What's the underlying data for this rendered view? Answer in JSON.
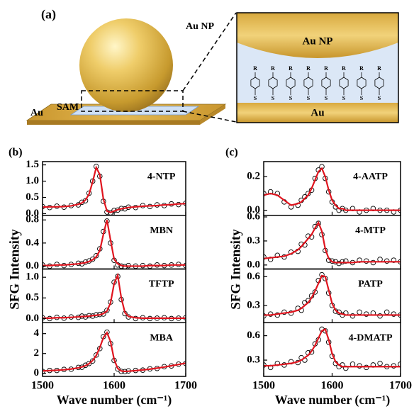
{
  "panel_a": {
    "label": "(a)",
    "np_label": "Au NP",
    "sam_label": "SAM",
    "substrate_label": "Au",
    "inset_np_label": "Au NP",
    "inset_substrate_label": "Au",
    "molecule_top_label": "R",
    "molecule_bottom_label": "S"
  },
  "panel_b": {
    "label": "(b)",
    "ylabel": "SFG Intensity",
    "xlabel": "Wave number (cm⁻¹)"
  },
  "panel_c": {
    "label": "(c)",
    "ylabel": "SFG Intensity",
    "xlabel": "Wave number (cm⁻¹)"
  },
  "chart_data": [
    {
      "type": "line",
      "annotation": "4-NTP",
      "x": [
        1500,
        1510,
        1520,
        1530,
        1540,
        1550,
        1555,
        1560,
        1565,
        1570,
        1575,
        1580,
        1585,
        1590,
        1595,
        1600,
        1605,
        1610,
        1615,
        1620,
        1630,
        1640,
        1650,
        1660,
        1670,
        1680,
        1690,
        1700
      ],
      "series": [
        {
          "color": "#000000",
          "marker": "circle",
          "values": [
            0.22,
            0.19,
            0.23,
            0.2,
            0.25,
            0.27,
            0.35,
            0.4,
            0.63,
            1.0,
            1.45,
            1.15,
            0.38,
            0.05,
            0.03,
            0.1,
            0.11,
            0.16,
            0.15,
            0.2,
            0.19,
            0.25,
            0.22,
            0.27,
            0.25,
            0.3,
            0.28,
            0.32
          ]
        },
        {
          "color": "#e0141e",
          "marker": "line",
          "values": [
            0.2,
            0.21,
            0.21,
            0.22,
            0.24,
            0.29,
            0.33,
            0.42,
            0.6,
            0.98,
            1.42,
            1.2,
            0.45,
            0.08,
            0.04,
            0.08,
            0.12,
            0.15,
            0.17,
            0.19,
            0.21,
            0.23,
            0.24,
            0.25,
            0.27,
            0.28,
            0.3,
            0.31
          ]
        }
      ],
      "xlim": [
        1500,
        1700
      ],
      "xticks": [
        1500,
        1600,
        1700
      ],
      "ylim": [
        -0.05,
        1.6
      ],
      "yticks": [
        {
          "value": 0,
          "label": "0.0"
        },
        0.5,
        {
          "value": 1,
          "label": "1.0"
        },
        1.5
      ]
    },
    {
      "type": "line",
      "annotation": "MBN",
      "x": [
        1500,
        1510,
        1520,
        1530,
        1540,
        1550,
        1555,
        1560,
        1565,
        1570,
        1575,
        1580,
        1585,
        1590,
        1595,
        1600,
        1605,
        1610,
        1615,
        1620,
        1630,
        1640,
        1650,
        1660,
        1670,
        1680,
        1690,
        1700
      ],
      "series": [
        {
          "color": "#000000",
          "marker": "circle",
          "values": [
            0.02,
            0.0,
            0.03,
            0.01,
            0.03,
            0.05,
            0.04,
            0.07,
            0.09,
            0.12,
            0.18,
            0.3,
            0.6,
            0.78,
            0.4,
            0.1,
            0.02,
            0.0,
            -0.01,
            0.01,
            0.0,
            0.01,
            0.0,
            0.02,
            0.01,
            0.02,
            0.03,
            0.01
          ]
        },
        {
          "color": "#e0141e",
          "marker": "line",
          "values": [
            0.01,
            0.01,
            0.02,
            0.02,
            0.03,
            0.04,
            0.05,
            0.06,
            0.08,
            0.11,
            0.16,
            0.27,
            0.55,
            0.8,
            0.45,
            0.12,
            0.04,
            0.01,
            0.0,
            0.0,
            0.0,
            0.0,
            0.01,
            0.01,
            0.01,
            0.02,
            0.02,
            0.02
          ]
        }
      ],
      "xlim": [
        1500,
        1700
      ],
      "xticks": [
        1500,
        1600,
        1700
      ],
      "ylim": [
        -0.05,
        0.88
      ],
      "yticks": [
        {
          "value": 0,
          "label": "0.0"
        },
        0.4,
        0.8
      ]
    },
    {
      "type": "line",
      "annotation": "TFTP",
      "x": [
        1500,
        1510,
        1520,
        1530,
        1540,
        1550,
        1555,
        1560,
        1565,
        1570,
        1575,
        1580,
        1585,
        1590,
        1595,
        1600,
        1605,
        1610,
        1615,
        1620,
        1630,
        1640,
        1650,
        1660,
        1670,
        1680,
        1690,
        1700
      ],
      "series": [
        {
          "color": "#000000",
          "marker": "circle",
          "values": [
            0.02,
            0.0,
            0.03,
            0.01,
            0.04,
            0.03,
            0.06,
            0.04,
            0.07,
            0.06,
            0.09,
            0.1,
            0.11,
            0.2,
            0.4,
            0.88,
            1.02,
            0.46,
            0.12,
            0.04,
            0.0,
            0.02,
            0.0,
            0.01,
            0.02,
            0.0,
            0.01,
            0.02
          ]
        },
        {
          "color": "#e0141e",
          "marker": "line",
          "values": [
            0.01,
            0.01,
            0.02,
            0.02,
            0.03,
            0.04,
            0.05,
            0.05,
            0.06,
            0.07,
            0.08,
            0.09,
            0.12,
            0.18,
            0.38,
            0.85,
            1.05,
            0.5,
            0.15,
            0.05,
            0.02,
            0.01,
            0.01,
            0.01,
            0.01,
            0.01,
            0.01,
            0.01
          ]
        }
      ],
      "xlim": [
        1500,
        1700
      ],
      "xticks": [
        1500,
        1600,
        1700
      ],
      "ylim": [
        -0.1,
        1.2
      ],
      "yticks": [
        {
          "value": 0,
          "label": "0.0"
        },
        0.5,
        {
          "value": 1,
          "label": "1.0"
        }
      ]
    },
    {
      "type": "line",
      "annotation": "MBA",
      "x": [
        1500,
        1510,
        1520,
        1530,
        1540,
        1550,
        1555,
        1560,
        1565,
        1570,
        1575,
        1580,
        1585,
        1590,
        1595,
        1600,
        1605,
        1610,
        1615,
        1620,
        1630,
        1640,
        1650,
        1660,
        1670,
        1680,
        1690,
        1700
      ],
      "series": [
        {
          "color": "#000000",
          "marker": "circle",
          "values": [
            0.2,
            0.3,
            0.3,
            0.4,
            0.42,
            0.6,
            0.62,
            0.82,
            1.0,
            1.25,
            1.85,
            2.5,
            3.7,
            4.15,
            3.0,
            1.3,
            0.45,
            0.2,
            0.18,
            0.25,
            0.3,
            0.33,
            0.46,
            0.5,
            0.68,
            0.75,
            0.93,
            1.0
          ]
        },
        {
          "color": "#e0141e",
          "marker": "line",
          "values": [
            0.25,
            0.28,
            0.32,
            0.37,
            0.44,
            0.56,
            0.65,
            0.78,
            0.98,
            1.3,
            1.8,
            2.6,
            3.6,
            4.1,
            3.2,
            1.4,
            0.5,
            0.25,
            0.2,
            0.22,
            0.28,
            0.35,
            0.43,
            0.53,
            0.64,
            0.77,
            0.9,
            1.03
          ]
        }
      ],
      "xlim": [
        1500,
        1700
      ],
      "xticks": [
        1500,
        1600,
        1700
      ],
      "ylim": [
        -0.3,
        5.1
      ],
      "yticks": [
        0,
        2,
        4
      ]
    },
    {
      "type": "line",
      "annotation": "4-AATP",
      "x": [
        1500,
        1510,
        1520,
        1530,
        1540,
        1550,
        1555,
        1560,
        1565,
        1570,
        1575,
        1580,
        1585,
        1590,
        1595,
        1600,
        1605,
        1610,
        1615,
        1620,
        1630,
        1640,
        1650,
        1660,
        1670,
        1680,
        1690,
        1700
      ],
      "series": [
        {
          "color": "#000000",
          "marker": "circle",
          "values": [
            0.1,
            0.11,
            0.1,
            0.05,
            0.02,
            0.03,
            0.06,
            0.08,
            0.1,
            0.12,
            0.19,
            0.24,
            0.26,
            0.19,
            0.11,
            0.05,
            0.02,
            0.0,
            0.01,
            0.0,
            0.01,
            -0.01,
            0.0,
            0.01,
            0.0,
            0.0,
            -0.01,
            0.0
          ]
        },
        {
          "color": "#e0141e",
          "marker": "line",
          "values": [
            0.09,
            0.1,
            0.09,
            0.06,
            0.03,
            0.04,
            0.05,
            0.07,
            0.09,
            0.13,
            0.18,
            0.23,
            0.25,
            0.2,
            0.12,
            0.06,
            0.03,
            0.01,
            0.01,
            0.0,
            0.0,
            0.0,
            0.0,
            0.0,
            0.0,
            0.0,
            0.0,
            0.0
          ]
        }
      ],
      "xlim": [
        1500,
        1700
      ],
      "xticks": [
        1500,
        1600,
        1700
      ],
      "ylim": [
        -0.03,
        0.29
      ],
      "yticks": [
        {
          "value": 0,
          "label": "0.0"
        },
        0.2
      ]
    },
    {
      "type": "line",
      "annotation": "4-MTP",
      "x": [
        1500,
        1510,
        1520,
        1530,
        1540,
        1550,
        1555,
        1560,
        1565,
        1570,
        1575,
        1580,
        1585,
        1590,
        1595,
        1600,
        1605,
        1610,
        1615,
        1620,
        1630,
        1640,
        1650,
        1660,
        1670,
        1680,
        1690,
        1700
      ],
      "series": [
        {
          "color": "#000000",
          "marker": "circle",
          "values": [
            0.1,
            0.07,
            0.12,
            0.1,
            0.16,
            0.17,
            0.26,
            0.25,
            0.36,
            0.35,
            0.48,
            0.52,
            0.38,
            0.18,
            0.06,
            0.05,
            0.04,
            0.02,
            0.04,
            0.05,
            0.03,
            0.06,
            0.05,
            0.03,
            0.07,
            0.05,
            0.06,
            0.04
          ]
        },
        {
          "color": "#e0141e",
          "marker": "line",
          "values": [
            0.08,
            0.09,
            0.1,
            0.11,
            0.14,
            0.19,
            0.23,
            0.28,
            0.33,
            0.38,
            0.46,
            0.53,
            0.42,
            0.2,
            0.08,
            0.04,
            0.03,
            0.03,
            0.03,
            0.03,
            0.03,
            0.04,
            0.04,
            0.04,
            0.04,
            0.04,
            0.04,
            0.04
          ]
        }
      ],
      "xlim": [
        1500,
        1700
      ],
      "xticks": [
        1500,
        1600,
        1700
      ],
      "ylim": [
        -0.05,
        0.62
      ],
      "yticks": [
        {
          "value": 0,
          "label": "0.0"
        },
        0.3,
        0.6
      ]
    },
    {
      "type": "line",
      "annotation": "PATP",
      "x": [
        1500,
        1510,
        1520,
        1530,
        1540,
        1550,
        1555,
        1560,
        1565,
        1570,
        1575,
        1580,
        1585,
        1590,
        1595,
        1600,
        1605,
        1610,
        1615,
        1620,
        1630,
        1640,
        1650,
        1660,
        1670,
        1680,
        1690,
        1700
      ],
      "series": [
        {
          "color": "#000000",
          "marker": "circle",
          "values": [
            0.19,
            0.21,
            0.2,
            0.23,
            0.22,
            0.27,
            0.25,
            0.33,
            0.35,
            0.4,
            0.44,
            0.56,
            0.62,
            0.58,
            0.43,
            0.3,
            0.24,
            0.23,
            0.2,
            0.22,
            0.19,
            0.23,
            0.21,
            0.22,
            0.19,
            0.23,
            0.21,
            0.2
          ]
        },
        {
          "color": "#e0141e",
          "marker": "line",
          "values": [
            0.2,
            0.2,
            0.21,
            0.22,
            0.23,
            0.25,
            0.27,
            0.3,
            0.33,
            0.38,
            0.45,
            0.53,
            0.61,
            0.6,
            0.46,
            0.32,
            0.25,
            0.22,
            0.21,
            0.2,
            0.2,
            0.2,
            0.2,
            0.2,
            0.2,
            0.2,
            0.2,
            0.2
          ]
        }
      ],
      "xlim": [
        1500,
        1700
      ],
      "xticks": [
        1500,
        1600,
        1700
      ],
      "ylim": [
        0.12,
        0.68
      ],
      "yticks": [
        0.3,
        0.6
      ]
    },
    {
      "type": "line",
      "annotation": "4-DMATP",
      "x": [
        1500,
        1510,
        1520,
        1530,
        1540,
        1550,
        1555,
        1560,
        1565,
        1570,
        1575,
        1580,
        1585,
        1590,
        1595,
        1600,
        1605,
        1610,
        1615,
        1620,
        1630,
        1640,
        1650,
        1660,
        1670,
        1680,
        1690,
        1700
      ],
      "series": [
        {
          "color": "#000000",
          "marker": "circle",
          "values": [
            0.24,
            0.21,
            0.26,
            0.24,
            0.28,
            0.27,
            0.33,
            0.3,
            0.39,
            0.4,
            0.5,
            0.55,
            0.68,
            0.66,
            0.52,
            0.35,
            0.26,
            0.22,
            0.24,
            0.2,
            0.25,
            0.23,
            0.21,
            0.24,
            0.26,
            0.22,
            0.23,
            0.25
          ]
        },
        {
          "color": "#e0141e",
          "marker": "line",
          "values": [
            0.23,
            0.23,
            0.24,
            0.25,
            0.26,
            0.28,
            0.3,
            0.33,
            0.36,
            0.41,
            0.48,
            0.57,
            0.66,
            0.68,
            0.55,
            0.38,
            0.28,
            0.24,
            0.22,
            0.22,
            0.22,
            0.22,
            0.22,
            0.22,
            0.22,
            0.22,
            0.22,
            0.22
          ]
        }
      ],
      "xlim": [
        1500,
        1700
      ],
      "xticks": [
        1500,
        1600,
        1700
      ],
      "ylim": [
        0.1,
        0.76
      ],
      "yticks": [
        0.3,
        0.6
      ]
    }
  ]
}
